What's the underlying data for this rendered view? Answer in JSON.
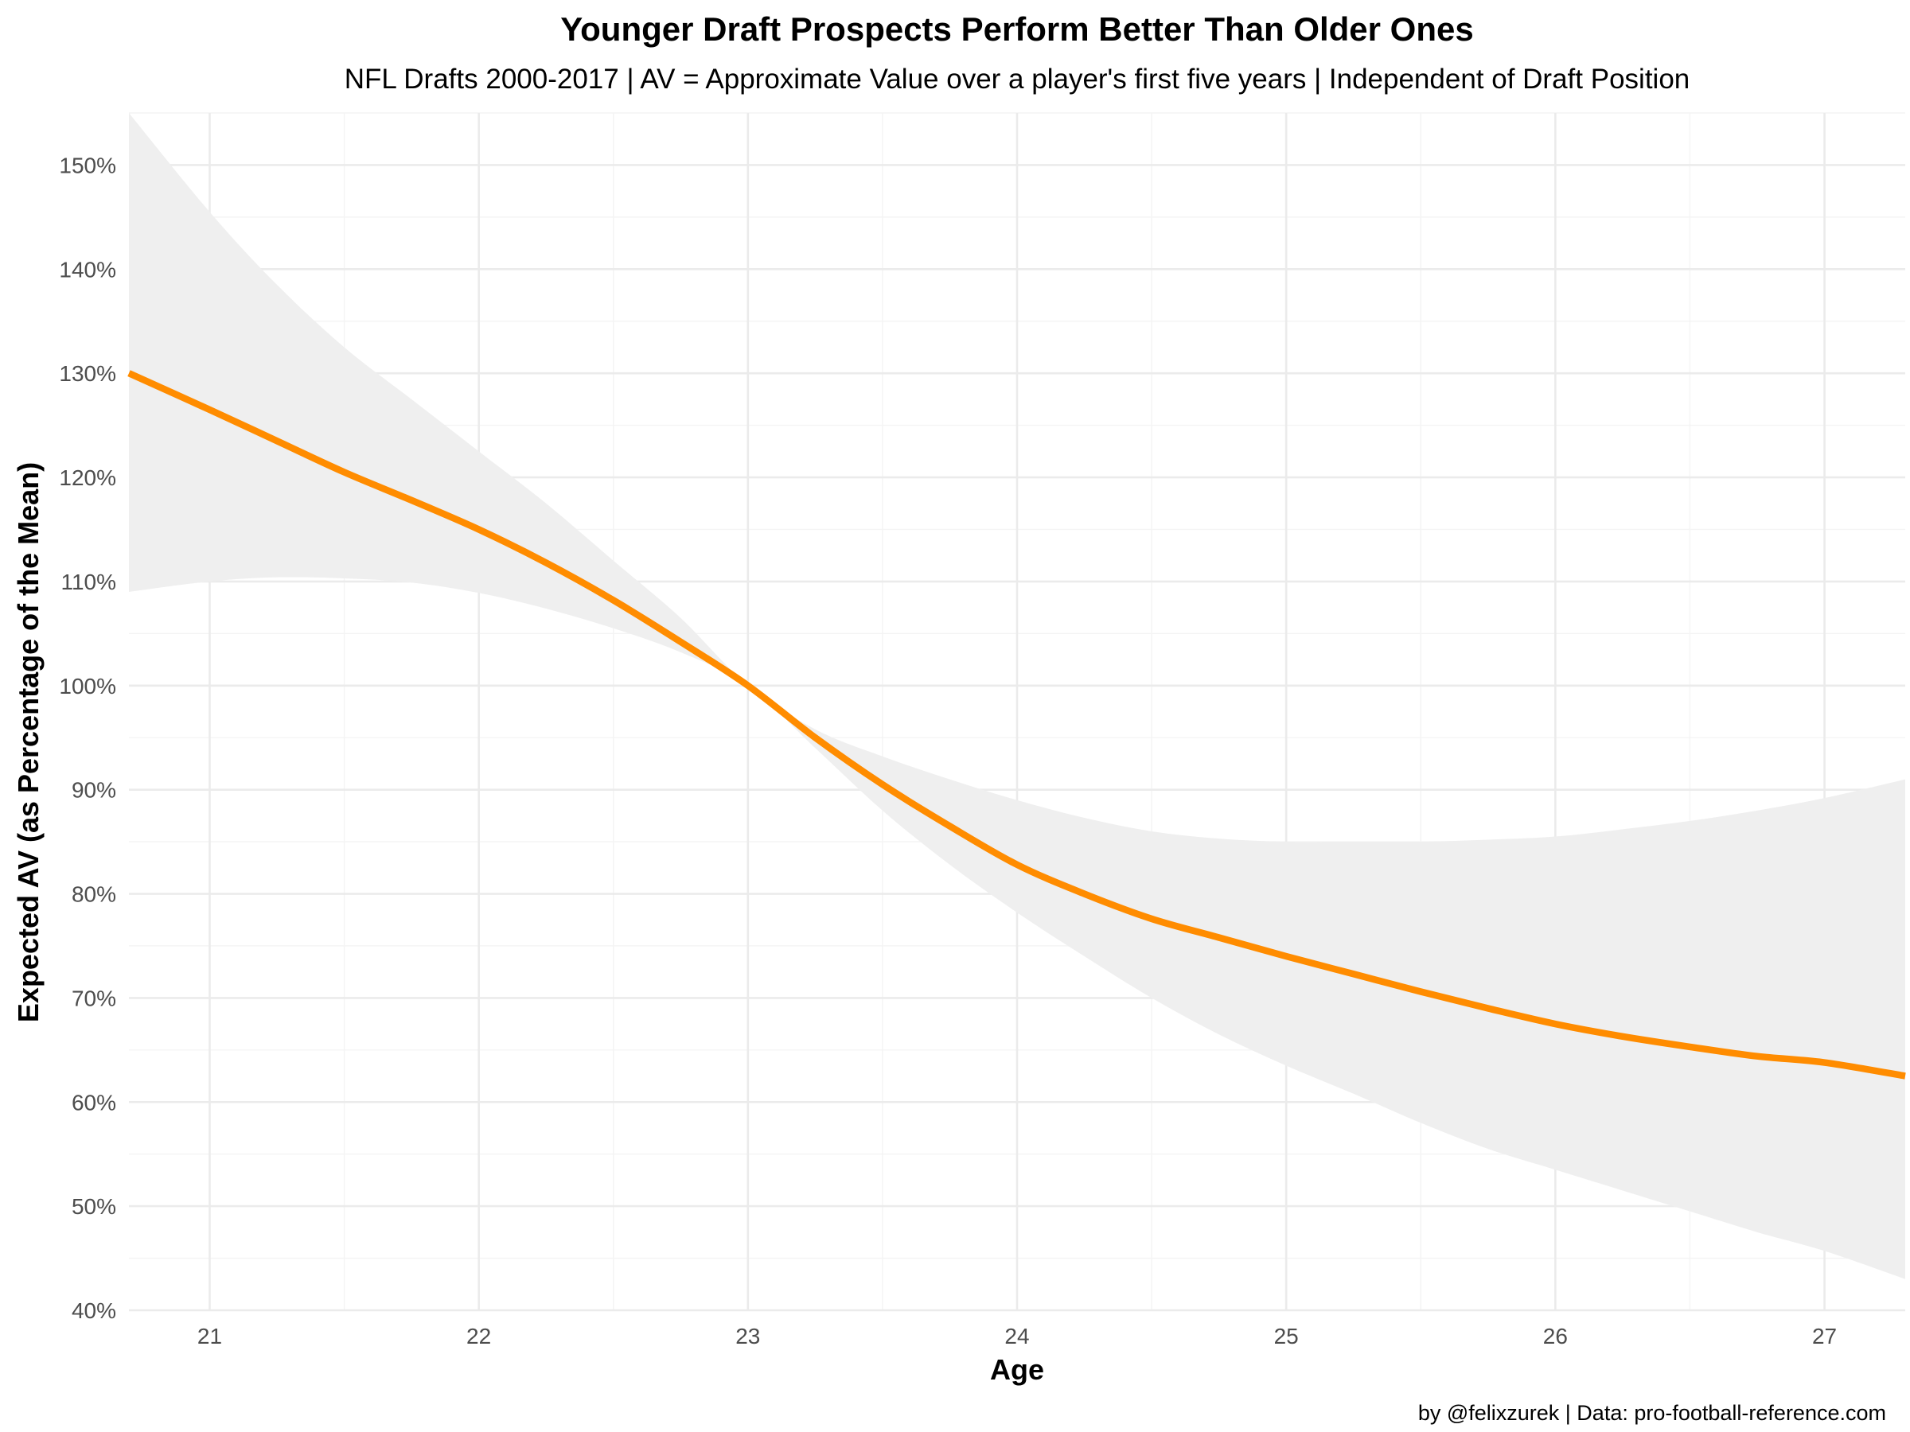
{
  "chart_data": {
    "type": "line",
    "title": "Younger Draft Prospects Perform Better Than Older Ones",
    "subtitle": "NFL Drafts 2000-2017 | AV = Approximate Value over a player's first five years | Independent of Draft Position",
    "xlabel": "Age",
    "ylabel": "Expected AV (as Percentage of the Mean)",
    "caption": "by @felixzurek | Data: pro-football-reference.com",
    "xlim": [
      20.7,
      27.3
    ],
    "ylim": [
      40,
      155
    ],
    "x_ticks": [
      21,
      22,
      23,
      24,
      25,
      26,
      27
    ],
    "x_tick_labels": [
      "21",
      "22",
      "23",
      "24",
      "25",
      "26",
      "27"
    ],
    "y_ticks": [
      40,
      50,
      60,
      70,
      80,
      90,
      100,
      110,
      120,
      130,
      140,
      150
    ],
    "y_tick_labels": [
      "40%",
      "50%",
      "60%",
      "70%",
      "80%",
      "90%",
      "100%",
      "110%",
      "120%",
      "130%",
      "140%",
      "150%"
    ],
    "grid": true,
    "legend": "none",
    "line_color": "#ff8c00",
    "ribbon_color": "#efefef",
    "series": [
      {
        "x": [
          20.7,
          21.0,
          21.25,
          21.5,
          21.75,
          22.0,
          22.25,
          22.5,
          22.75,
          23.0,
          23.25,
          23.5,
          23.75,
          24.0,
          24.25,
          24.5,
          24.75,
          25.0,
          25.25,
          25.5,
          25.75,
          26.0,
          26.25,
          26.5,
          26.75,
          27.0,
          27.3
        ],
        "y": [
          130.0,
          126.5,
          123.5,
          120.5,
          117.8,
          115.0,
          111.8,
          108.2,
          104.2,
          100.0,
          95.0,
          90.5,
          86.5,
          82.8,
          80.0,
          77.6,
          75.8,
          74.0,
          72.3,
          70.6,
          69.0,
          67.5,
          66.3,
          65.3,
          64.4,
          63.8,
          62.5
        ],
        "lower": [
          109.0,
          110.0,
          110.4,
          110.3,
          109.9,
          108.9,
          107.4,
          105.5,
          103.2,
          100.0,
          94.0,
          88.0,
          82.8,
          78.2,
          74.0,
          70.0,
          66.5,
          63.5,
          60.8,
          58.0,
          55.5,
          53.5,
          51.5,
          49.5,
          47.5,
          45.7,
          43.0
        ],
        "upper": [
          155.0,
          145.5,
          138.5,
          132.5,
          127.5,
          122.5,
          117.5,
          112.0,
          106.5,
          100.0,
          95.8,
          93.2,
          91.0,
          89.0,
          87.3,
          86.0,
          85.3,
          85.0,
          85.0,
          85.0,
          85.2,
          85.5,
          86.2,
          87.0,
          88.0,
          89.2,
          91.0
        ]
      }
    ]
  }
}
